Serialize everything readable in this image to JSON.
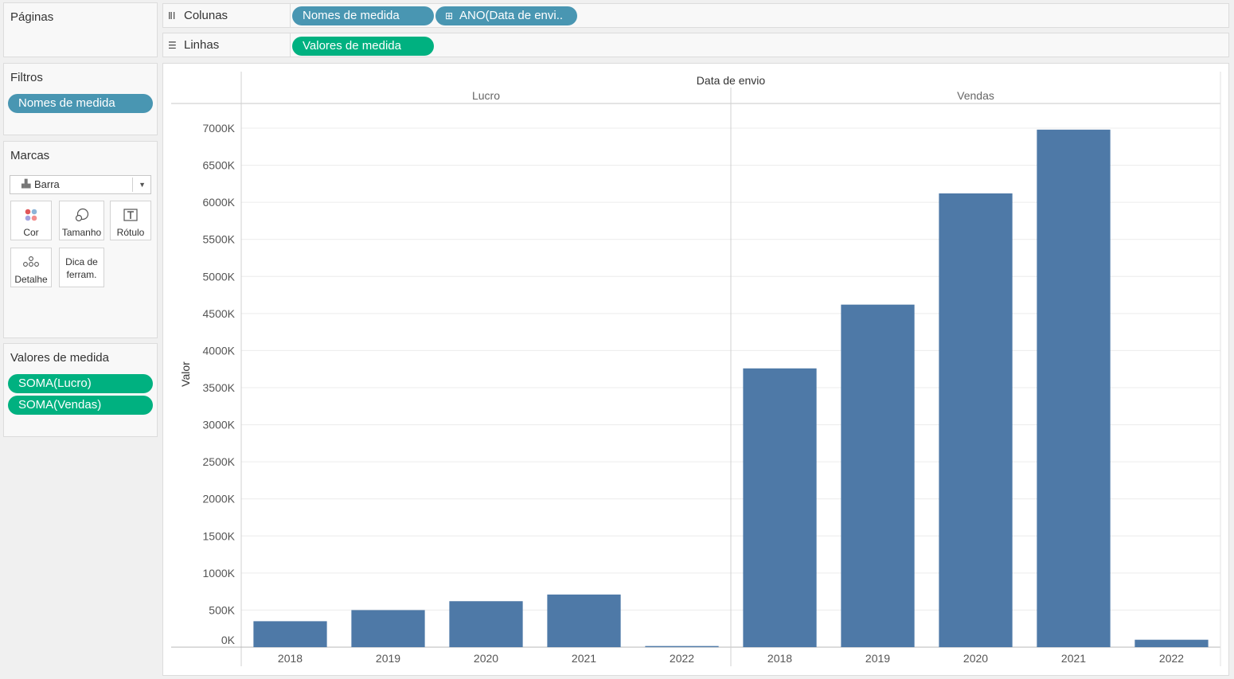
{
  "pages_card": {
    "title": "Páginas"
  },
  "columns_shelf": {
    "label": "Colunas",
    "icon": "columns-icon",
    "pills": [
      "Nomes de medida",
      "ANO(Data de envi.."
    ]
  },
  "rows_shelf": {
    "label": "Linhas",
    "icon": "rows-icon",
    "pills": [
      "Valores de medida"
    ]
  },
  "filters_card": {
    "title": "Filtros",
    "pills": [
      "Nomes de medida"
    ]
  },
  "marks_card": {
    "title": "Marcas",
    "mark_type": "Barra",
    "mark_type_icon": "bar-chart-icon",
    "buttons": [
      {
        "label": "Cor",
        "icon": "color-icon"
      },
      {
        "label": "Tamanho",
        "icon": "size-icon"
      },
      {
        "label": "Rótulo",
        "icon": "label-icon"
      },
      {
        "label": "Detalhe",
        "icon": "detail-icon"
      },
      {
        "label": "Dica de ferram.",
        "icon": "tooltip-icon"
      }
    ]
  },
  "measure_values_card": {
    "title": "Valores de medida",
    "pills": [
      "SOMA(Lucro)",
      "SOMA(Vendas)"
    ]
  },
  "chart_data": {
    "type": "bar",
    "title": "Data de envio",
    "ylabel": "Valor",
    "ylim": [
      0,
      7000
    ],
    "yunit": "K",
    "yticks": [
      "0K",
      "500K",
      "1000K",
      "1500K",
      "2000K",
      "2500K",
      "3000K",
      "3500K",
      "4000K",
      "4500K",
      "5000K",
      "5500K",
      "6000K",
      "6500K",
      "7000K"
    ],
    "grid": true,
    "bar_color": "#4e79a7",
    "panels": [
      {
        "name": "Lucro",
        "categories": [
          "2018",
          "2019",
          "2020",
          "2021",
          "2022"
        ],
        "values": [
          350,
          500,
          620,
          710,
          15
        ]
      },
      {
        "name": "Vendas",
        "categories": [
          "2018",
          "2019",
          "2020",
          "2021",
          "2022"
        ],
        "values": [
          3760,
          4620,
          6120,
          6980,
          100
        ]
      }
    ]
  }
}
